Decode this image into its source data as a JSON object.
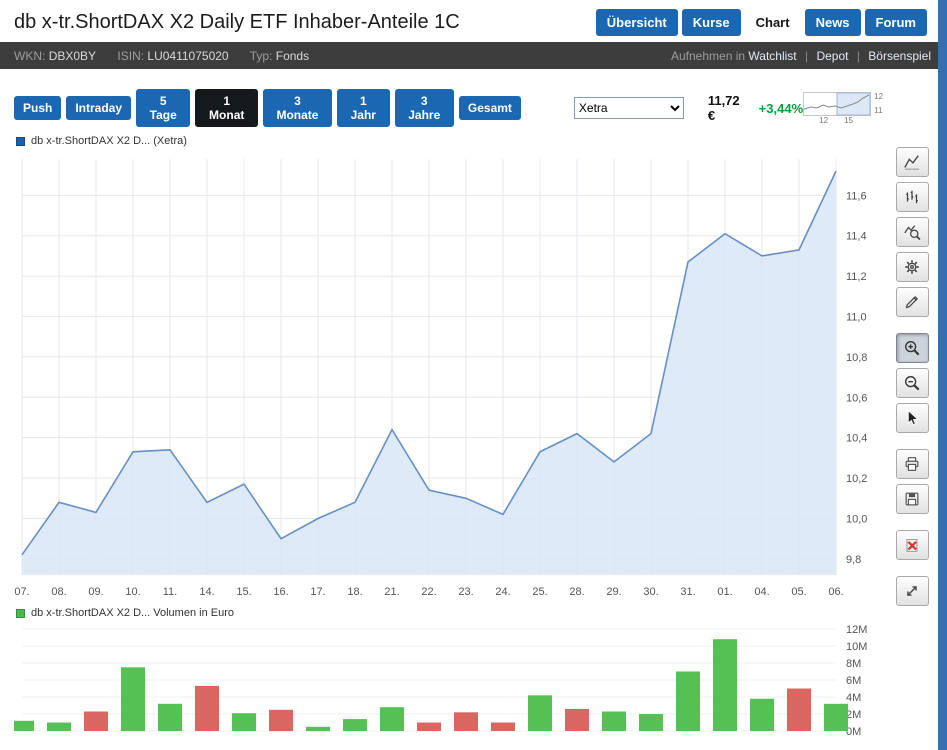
{
  "header": {
    "title": "db x-tr.ShortDAX X2 Daily ETF Inhaber-Anteile 1C",
    "tabs": [
      {
        "label": "Übersicht",
        "active": false
      },
      {
        "label": "Kurse",
        "active": false
      },
      {
        "label": "Chart",
        "active": true
      },
      {
        "label": "News",
        "active": false
      },
      {
        "label": "Forum",
        "active": false
      }
    ]
  },
  "subheader": {
    "wkn_label": "WKN:",
    "wkn": "DBX0BY",
    "isin_label": "ISIN:",
    "isin": "LU0411075020",
    "typ_label": "Typ:",
    "typ": "Fonds",
    "aufnehmen": "Aufnehmen in",
    "links": [
      "Watchlist",
      "Depot",
      "Börsenspiel"
    ]
  },
  "toolbar": {
    "periods": [
      "Push",
      "Intraday",
      "5 Tage",
      "1 Monat",
      "3 Monate",
      "1 Jahr",
      "3 Jahre",
      "Gesamt"
    ],
    "active_period": "1 Monat",
    "exchange": "Xetra",
    "price": "11,72 €",
    "change": "+3,44%",
    "sparkline_ylabels": [
      "12",
      "11"
    ],
    "sparkline_xlabels": [
      "12",
      "15"
    ]
  },
  "side_toolbar": {
    "tools": [
      "line-chart",
      "ohlc-bars",
      "indicator-search",
      "settings-gear",
      "draw-pencil",
      "zoom-in",
      "zoom-out",
      "cursor",
      "print",
      "save",
      "delete",
      "fullscreen"
    ],
    "pressed_tool": "zoom-in"
  },
  "colors": {
    "accent_blue": "#1b67b2",
    "active_dark": "#15181d",
    "subheader_bg": "#3d3d3d",
    "positive_green": "#00a03a",
    "price_line": "#6690c4",
    "price_fill": "#d9e6f7",
    "volume_up": "#55c155",
    "volume_down": "#d9675f",
    "edge_strip": "#3270b5"
  },
  "chart_data": [
    {
      "type": "area",
      "name": "db x-tr.ShortDAX X2 D... (Xetra)",
      "x": [
        "07.",
        "08.",
        "09.",
        "10.",
        "11.",
        "14.",
        "15.",
        "16.",
        "17.",
        "18.",
        "21.",
        "22.",
        "23.",
        "24.",
        "25.",
        "28.",
        "29.",
        "30.",
        "31.",
        "01.",
        "04.",
        "05.",
        "06."
      ],
      "values": [
        9.82,
        10.08,
        10.03,
        10.33,
        10.34,
        10.08,
        10.17,
        9.9,
        10.0,
        10.08,
        10.44,
        10.14,
        10.1,
        10.02,
        10.33,
        10.42,
        10.28,
        10.42,
        11.27,
        11.41,
        11.3,
        11.33,
        11.72
      ],
      "ylim": [
        9.72,
        11.78
      ],
      "yticks": [
        9.8,
        10.0,
        10.2,
        10.4,
        10.6,
        10.8,
        11.0,
        11.2,
        11.4,
        11.6
      ],
      "ytick_labels": [
        "9,8",
        "10,0",
        "10,2",
        "10,4",
        "10,6",
        "10,8",
        "11,0",
        "11,2",
        "11,4",
        "11,6"
      ],
      "grid": true,
      "legend_position": "top-left",
      "line_color": "#6690c4",
      "fill_color": "#d9e6f7"
    },
    {
      "type": "bar",
      "name": "db x-tr.ShortDAX X2 D... Volumen in Euro",
      "x": [
        "07.",
        "08.",
        "09.",
        "10.",
        "11.",
        "14.",
        "15.",
        "16.",
        "17.",
        "18.",
        "21.",
        "22.",
        "23.",
        "24.",
        "25.",
        "28.",
        "29.",
        "30.",
        "31.",
        "01.",
        "04.",
        "05.",
        "06."
      ],
      "values": [
        1.2,
        1.0,
        2.3,
        7.5,
        3.2,
        5.3,
        2.1,
        2.5,
        0.5,
        1.4,
        2.8,
        1.0,
        2.2,
        1.0,
        4.2,
        2.6,
        2.3,
        2.0,
        7.0,
        10.8,
        3.8,
        5.0,
        3.2
      ],
      "directions": [
        "up",
        "up",
        "down",
        "up",
        "up",
        "down",
        "up",
        "down",
        "up",
        "up",
        "up",
        "down",
        "down",
        "down",
        "up",
        "down",
        "up",
        "up",
        "up",
        "up",
        "up",
        "down",
        "up"
      ],
      "unit": "M",
      "ylim": [
        0,
        12
      ],
      "yticks": [
        0,
        2,
        4,
        6,
        8,
        10,
        12
      ],
      "ytick_labels": [
        "0M",
        "2M",
        "4M",
        "6M",
        "8M",
        "10M",
        "12M"
      ],
      "grid": true,
      "legend_position": "top-left",
      "up_color": "#55c155",
      "down_color": "#d9675f"
    }
  ]
}
